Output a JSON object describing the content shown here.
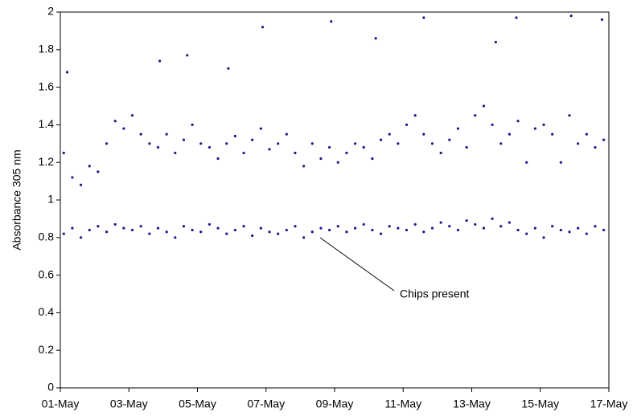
{
  "chart_data": {
    "type": "scatter",
    "y_label": "Absorbance 305 nm",
    "annotation": "Chips present",
    "color": "#1a1a8c",
    "xlim": [
      0,
      16
    ],
    "ylim": [
      0,
      2
    ],
    "xticks": [
      {
        "value": 0,
        "label": "01-May"
      },
      {
        "value": 2,
        "label": "03-May"
      },
      {
        "value": 4,
        "label": "05-May"
      },
      {
        "value": 6,
        "label": "07-May"
      },
      {
        "value": 8,
        "label": "09-May"
      },
      {
        "value": 10,
        "label": "11-May"
      },
      {
        "value": 12,
        "label": "13-May"
      },
      {
        "value": 14,
        "label": "15-May"
      },
      {
        "value": 16,
        "label": "17-May"
      }
    ],
    "yticks": [
      0,
      0.2,
      0.4,
      0.6,
      0.8,
      1,
      1.2,
      1.4,
      1.6,
      1.8,
      2
    ],
    "grid": false,
    "x": [
      0.1,
      0.35,
      0.6,
      0.85,
      1.1,
      1.35,
      1.6,
      1.85,
      2.1,
      2.35,
      2.6,
      2.85,
      3.1,
      3.35,
      3.6,
      3.85,
      4.1,
      4.35,
      4.6,
      4.85,
      5.1,
      5.35,
      5.6,
      5.85,
      6.1,
      6.35,
      6.6,
      6.85,
      7.1,
      7.35,
      7.6,
      7.85,
      8.1,
      8.35,
      8.6,
      8.85,
      9.1,
      9.35,
      9.6,
      9.85,
      10.1,
      10.35,
      10.6,
      10.85,
      11.1,
      11.35,
      11.6,
      11.85,
      12.1,
      12.35,
      12.6,
      12.85,
      13.1,
      13.35,
      13.6,
      13.85,
      14.1,
      14.35,
      14.6,
      14.85,
      15.1,
      15.35,
      15.6,
      15.85,
      0.1,
      0.35,
      0.6,
      0.85,
      1.1,
      1.35,
      1.6,
      1.85,
      2.1,
      2.35,
      2.6,
      2.85,
      3.1,
      3.35,
      3.6,
      3.85,
      4.1,
      4.35,
      4.6,
      4.85,
      5.1,
      5.35,
      5.6,
      5.85,
      6.1,
      6.35,
      6.6,
      6.85,
      7.1,
      7.35,
      7.6,
      7.85,
      8.1,
      8.35,
      8.6,
      8.85,
      9.1,
      9.35,
      9.6,
      9.85,
      10.1,
      10.35,
      10.6,
      10.85,
      11.1,
      11.35,
      11.6,
      11.85,
      12.1,
      12.35,
      12.6,
      12.85,
      13.1,
      13.35,
      13.6,
      13.85,
      14.1,
      14.35,
      14.6,
      14.85,
      15.1,
      15.35,
      15.6,
      15.85,
      0.2,
      2.9,
      3.7,
      5.9,
      7.9,
      10.6,
      12.7,
      13.3,
      14.9,
      15.8,
      9.2,
      4.9
    ],
    "values": [
      1.25,
      1.12,
      1.08,
      1.18,
      1.15,
      1.3,
      1.42,
      1.38,
      1.45,
      1.35,
      1.3,
      1.28,
      1.35,
      1.25,
      1.32,
      1.4,
      1.3,
      1.28,
      1.22,
      1.3,
      1.34,
      1.25,
      1.32,
      1.38,
      1.27,
      1.3,
      1.35,
      1.25,
      1.18,
      1.3,
      1.22,
      1.28,
      1.2,
      1.25,
      1.3,
      1.28,
      1.22,
      1.32,
      1.35,
      1.3,
      1.4,
      1.45,
      1.35,
      1.3,
      1.25,
      1.32,
      1.38,
      1.28,
      1.45,
      1.5,
      1.4,
      1.3,
      1.35,
      1.42,
      1.2,
      1.38,
      1.4,
      1.35,
      1.2,
      1.45,
      1.3,
      1.35,
      1.28,
      1.32,
      0.82,
      0.85,
      0.8,
      0.84,
      0.86,
      0.83,
      0.87,
      0.85,
      0.84,
      0.86,
      0.82,
      0.85,
      0.83,
      0.8,
      0.86,
      0.84,
      0.83,
      0.87,
      0.85,
      0.82,
      0.84,
      0.86,
      0.81,
      0.85,
      0.83,
      0.82,
      0.84,
      0.86,
      0.8,
      0.83,
      0.85,
      0.84,
      0.86,
      0.83,
      0.85,
      0.87,
      0.84,
      0.82,
      0.86,
      0.85,
      0.84,
      0.87,
      0.83,
      0.85,
      0.88,
      0.86,
      0.84,
      0.89,
      0.87,
      0.85,
      0.9,
      0.86,
      0.88,
      0.84,
      0.82,
      0.85,
      0.8,
      0.86,
      0.84,
      0.83,
      0.85,
      0.82,
      0.86,
      0.84,
      1.68,
      1.74,
      1.77,
      1.92,
      1.95,
      1.97,
      1.84,
      1.97,
      1.98,
      1.96,
      1.86,
      1.7
    ]
  }
}
